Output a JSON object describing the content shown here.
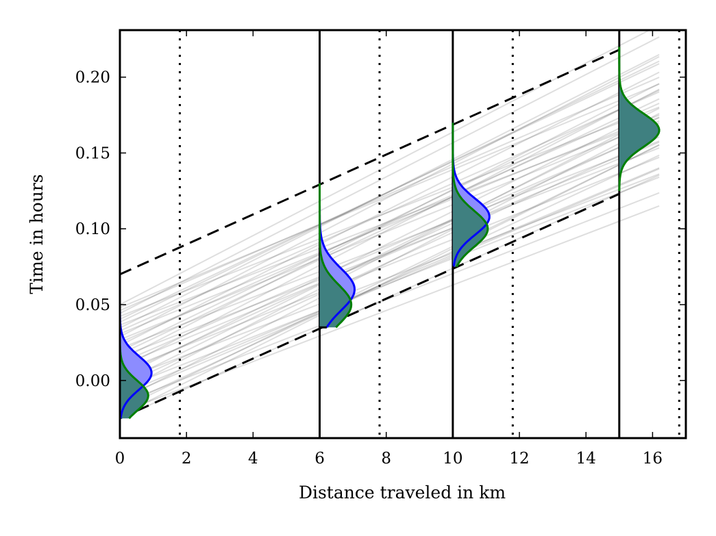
{
  "chart_data": {
    "type": "line",
    "title": "",
    "xlabel": "Distance traveled in km",
    "ylabel": "Time in hours",
    "xlim": [
      0,
      17
    ],
    "ylim": [
      -0.038,
      0.231
    ],
    "xticks": [
      {
        "value": 0,
        "label": "0"
      },
      {
        "value": 2,
        "label": "2"
      },
      {
        "value": 4,
        "label": "4"
      },
      {
        "value": 6,
        "label": "6"
      },
      {
        "value": 8,
        "label": "8"
      },
      {
        "value": 10,
        "label": "10"
      },
      {
        "value": 12,
        "label": "12"
      },
      {
        "value": 14,
        "label": "14"
      },
      {
        "value": 16,
        "label": "16"
      }
    ],
    "yticks": [
      {
        "value": 0.0,
        "label": "0.00"
      },
      {
        "value": 0.05,
        "label": "0.05"
      },
      {
        "value": 0.1,
        "label": "0.10"
      },
      {
        "value": 0.15,
        "label": "0.15"
      },
      {
        "value": 0.2,
        "label": "0.20"
      }
    ],
    "grid": false,
    "solid_vertical_lines_x": [
      6,
      10,
      15
    ],
    "dotted_vertical_lines_x": [
      1.8,
      7.8,
      11.8,
      16.8
    ],
    "dashed_envelope": {
      "upper": {
        "x": [
          0,
          15
        ],
        "y": [
          0.07,
          0.218
        ]
      },
      "lower": {
        "x": [
          0,
          15
        ],
        "y": [
          -0.025,
          0.123
        ]
      }
    },
    "trajectories": {
      "count": 40,
      "x": [
        0,
        15
      ],
      "start_time_range": [
        -0.025,
        0.05
      ],
      "slope_hours_per_km": 0.0099,
      "slope_spread": 0.0015,
      "color": "#000000"
    },
    "distributions": [
      {
        "x": 0,
        "t_min": -0.025,
        "t_max": 0.05,
        "blue": {
          "mean": 0.005,
          "sd": 0.011,
          "width_km": 0.95
        },
        "green": {
          "mean": -0.01,
          "sd": 0.01,
          "width_km": 0.85
        }
      },
      {
        "x": 6,
        "t_min": 0.035,
        "t_max": 0.13,
        "blue": {
          "mean": 0.06,
          "sd": 0.014,
          "width_km": 1.05
        },
        "green": {
          "mean": 0.05,
          "sd": 0.013,
          "width_km": 0.95
        }
      },
      {
        "x": 10,
        "t_min": 0.075,
        "t_max": 0.17,
        "blue": {
          "mean": 0.108,
          "sd": 0.012,
          "width_km": 1.1
        },
        "green": {
          "mean": 0.1,
          "sd": 0.012,
          "width_km": 1.05
        }
      },
      {
        "x": 15,
        "t_min": 0.125,
        "t_max": 0.22,
        "green": {
          "mean": 0.165,
          "sd": 0.011,
          "width_km": 1.2
        }
      }
    ],
    "colors": {
      "blue_line": "#0000ff",
      "blue_fill": "#8c8cff",
      "green_line": "#008000",
      "overlap_fill": "#3f8080"
    }
  }
}
